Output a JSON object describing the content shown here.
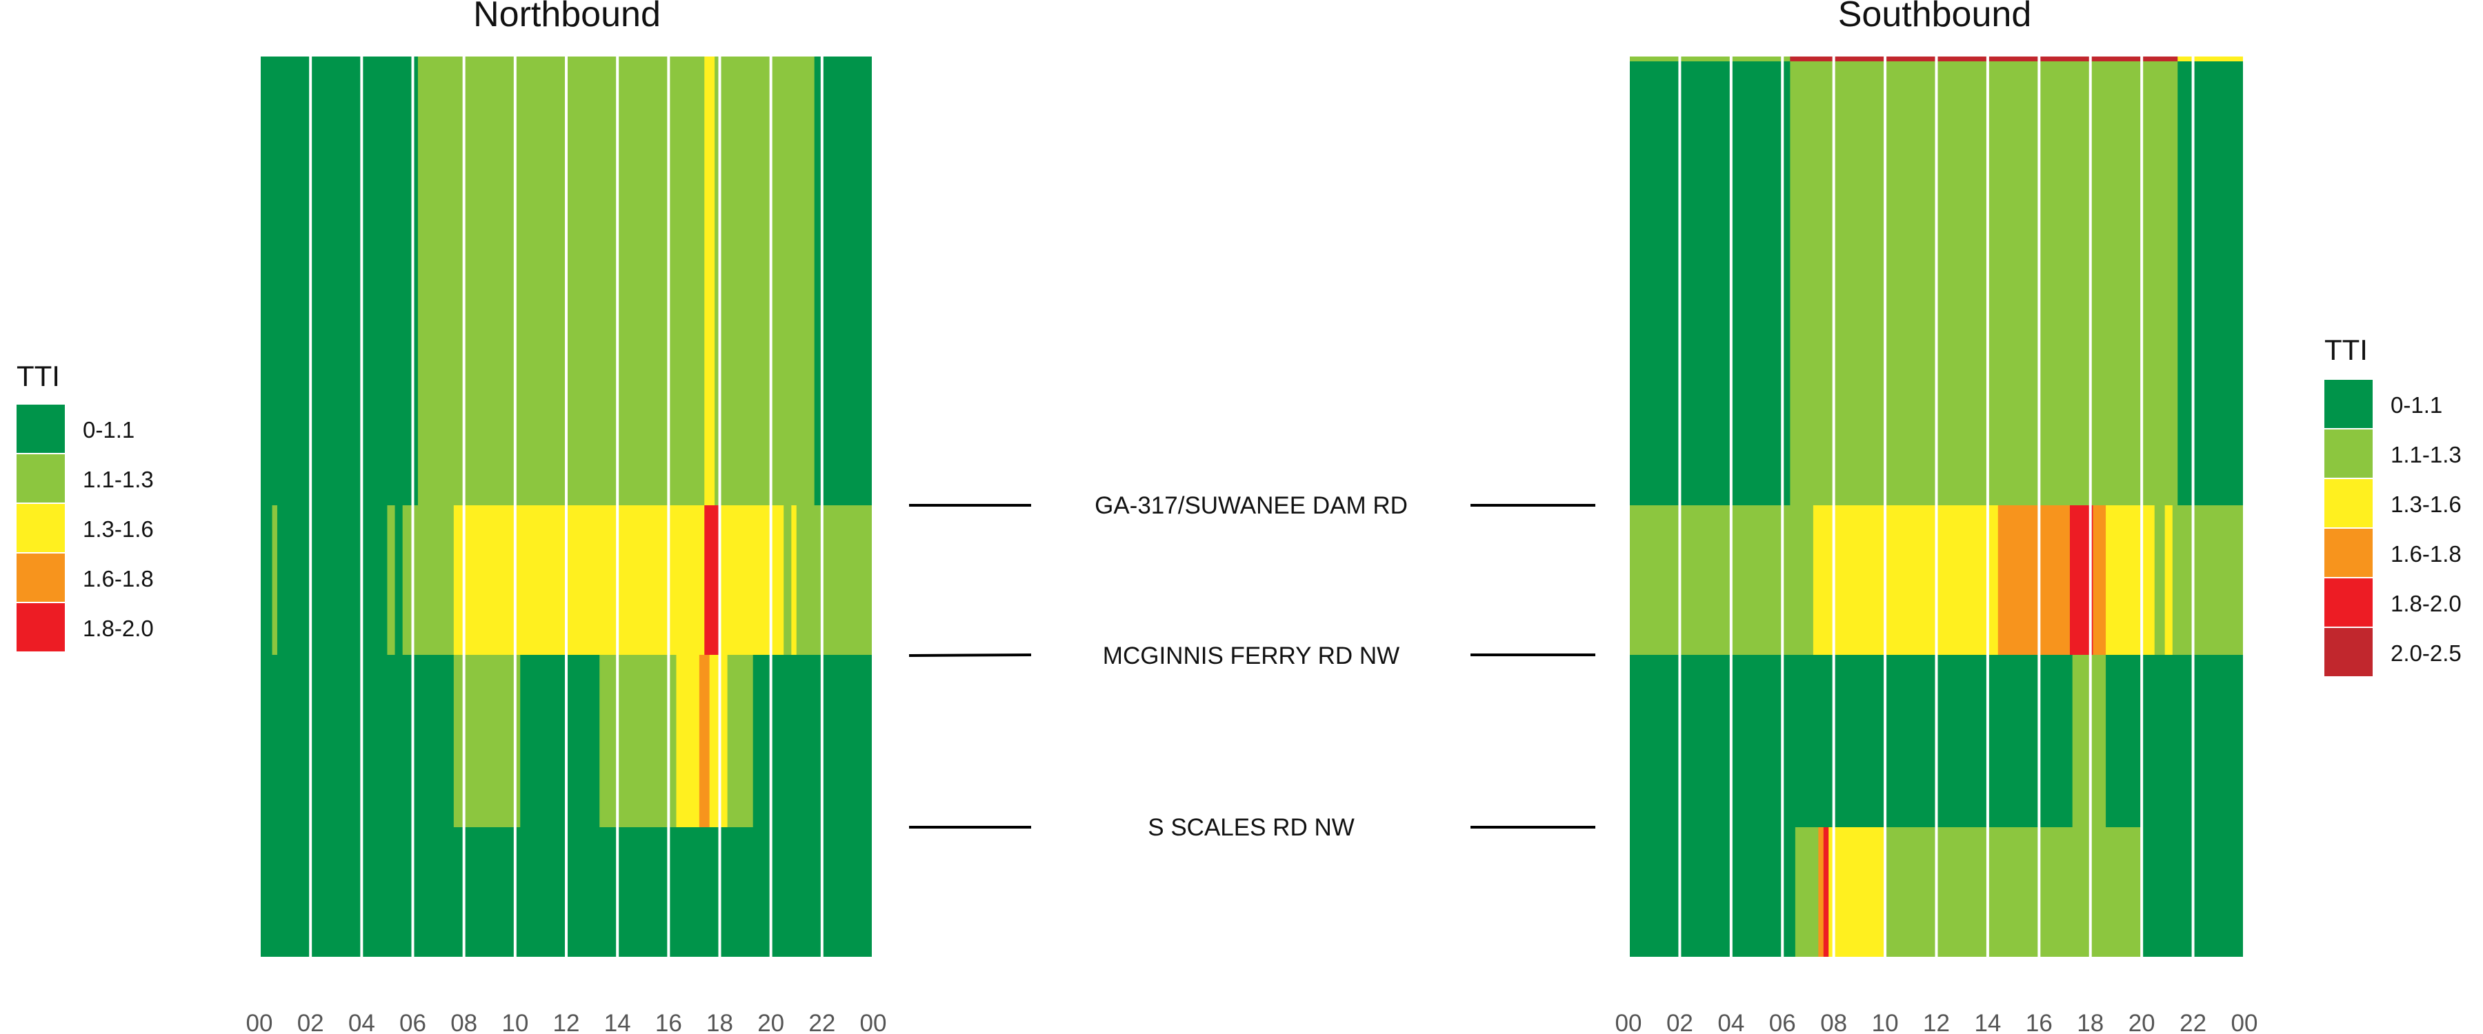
{
  "chart_data": {
    "type": "heatmap",
    "metric": "TTI",
    "x_tick_labels": [
      "00",
      "02",
      "04",
      "06",
      "08",
      "10",
      "12",
      "14",
      "16",
      "18",
      "20",
      "22",
      "00"
    ],
    "legend_left": {
      "title": "TTI",
      "entries": [
        {
          "label": "0-1.1",
          "color": "#00944a"
        },
        {
          "label": "1.1-1.3",
          "color": "#8cc63f"
        },
        {
          "label": "1.3-1.6",
          "color": "#fff01f"
        },
        {
          "label": "1.6-1.8",
          "color": "#f7941d"
        },
        {
          "label": "1.8-2.0",
          "color": "#ed1c24"
        }
      ]
    },
    "legend_right": {
      "title": "TTI",
      "entries": [
        {
          "label": "0-1.1",
          "color": "#00944a"
        },
        {
          "label": "1.1-1.3",
          "color": "#8cc63f"
        },
        {
          "label": "1.3-1.6",
          "color": "#fff01f"
        },
        {
          "label": "1.6-1.8",
          "color": "#f7941d"
        },
        {
          "label": "1.8-2.0",
          "color": "#ed1c24"
        },
        {
          "label": "2.0-2.5",
          "color": "#c1272d"
        }
      ]
    },
    "segment_labels": [
      "GA-317/SUWANEE DAM RD",
      "MCGINNIS FERRY RD NW",
      "S SCALES RD NW"
    ],
    "panels": [
      {
        "title": "Northbound",
        "rows": [
          {
            "segment": "North of GA-317/SUWANEE DAM RD",
            "blocks": [
              {
                "start": 0,
                "end": 6.2,
                "tti": "0-1.1"
              },
              {
                "start": 6.2,
                "end": 17.4,
                "tti": "1.1-1.3"
              },
              {
                "start": 17.4,
                "end": 17.8,
                "tti": "1.3-1.6"
              },
              {
                "start": 17.8,
                "end": 21.7,
                "tti": "1.1-1.3"
              },
              {
                "start": 21.7,
                "end": 24,
                "tti": "0-1.1"
              }
            ]
          },
          {
            "segment": "GA-317/SUWANEE DAM RD to MCGINNIS FERRY RD NW",
            "blocks": [
              {
                "start": 0,
                "end": 0.5,
                "tti": "0-1.1"
              },
              {
                "start": 0.5,
                "end": 0.7,
                "tti": "1.1-1.3"
              },
              {
                "start": 0.7,
                "end": 5.0,
                "tti": "0-1.1"
              },
              {
                "start": 5.0,
                "end": 5.3,
                "tti": "1.1-1.3"
              },
              {
                "start": 5.3,
                "end": 5.6,
                "tti": "0-1.1"
              },
              {
                "start": 5.6,
                "end": 7.6,
                "tti": "1.1-1.3"
              },
              {
                "start": 7.6,
                "end": 17.4,
                "tti": "1.3-1.6"
              },
              {
                "start": 17.4,
                "end": 18.0,
                "tti": "1.8-2.0"
              },
              {
                "start": 18.0,
                "end": 20.5,
                "tti": "1.3-1.6"
              },
              {
                "start": 20.5,
                "end": 20.8,
                "tti": "1.1-1.3"
              },
              {
                "start": 20.8,
                "end": 21.0,
                "tti": "1.3-1.6"
              },
              {
                "start": 21.0,
                "end": 24,
                "tti": "1.1-1.3"
              }
            ]
          },
          {
            "segment": "MCGINNIS FERRY RD NW to S SCALES RD NW",
            "blocks": [
              {
                "start": 0,
                "end": 7.6,
                "tti": "0-1.1"
              },
              {
                "start": 7.6,
                "end": 10.2,
                "tti": "1.1-1.3"
              },
              {
                "start": 10.2,
                "end": 13.3,
                "tti": "0-1.1"
              },
              {
                "start": 13.3,
                "end": 16.3,
                "tti": "1.1-1.3"
              },
              {
                "start": 16.3,
                "end": 17.2,
                "tti": "1.3-1.6"
              },
              {
                "start": 17.2,
                "end": 17.6,
                "tti": "1.6-1.8"
              },
              {
                "start": 17.6,
                "end": 18.3,
                "tti": "1.3-1.6"
              },
              {
                "start": 18.3,
                "end": 19.3,
                "tti": "1.1-1.3"
              },
              {
                "start": 19.3,
                "end": 24,
                "tti": "0-1.1"
              }
            ]
          },
          {
            "segment": "South of S SCALES RD NW",
            "blocks": [
              {
                "start": 0,
                "end": 24,
                "tti": "0-1.1"
              }
            ]
          }
        ]
      },
      {
        "title": "Southbound",
        "rows": [
          {
            "segment": "North of GA-317/SUWANEE DAM RD",
            "blocks": [
              {
                "start": 0,
                "end": 6.3,
                "tti": "0-1.1"
              },
              {
                "start": 6.3,
                "end": 21.4,
                "tti": "1.1-1.3"
              },
              {
                "start": 21.4,
                "end": 24,
                "tti": "0-1.1"
              }
            ]
          },
          {
            "segment": "GA-317/SUWANEE DAM RD to MCGINNIS FERRY RD NW",
            "blocks": [
              {
                "start": 0,
                "end": 7.2,
                "tti": "1.1-1.3"
              },
              {
                "start": 7.2,
                "end": 14.4,
                "tti": "1.3-1.6"
              },
              {
                "start": 14.4,
                "end": 17.2,
                "tti": "1.6-1.8"
              },
              {
                "start": 17.2,
                "end": 18.1,
                "tti": "1.8-2.0"
              },
              {
                "start": 18.1,
                "end": 18.6,
                "tti": "1.6-1.8"
              },
              {
                "start": 18.6,
                "end": 20.5,
                "tti": "1.3-1.6"
              },
              {
                "start": 20.5,
                "end": 20.9,
                "tti": "1.1-1.3"
              },
              {
                "start": 20.9,
                "end": 21.2,
                "tti": "1.3-1.6"
              },
              {
                "start": 21.2,
                "end": 24,
                "tti": "1.1-1.3"
              }
            ]
          },
          {
            "segment": "MCGINNIS FERRY RD NW to S SCALES RD NW",
            "blocks": [
              {
                "start": 0,
                "end": 17.3,
                "tti": "0-1.1"
              },
              {
                "start": 17.3,
                "end": 18.6,
                "tti": "1.1-1.3"
              },
              {
                "start": 18.6,
                "end": 24,
                "tti": "0-1.1"
              }
            ]
          },
          {
            "segment": "South of S SCALES RD NW",
            "blocks": [
              {
                "start": 0,
                "end": 6.5,
                "tti": "0-1.1"
              },
              {
                "start": 6.5,
                "end": 7.4,
                "tti": "1.1-1.3"
              },
              {
                "start": 7.4,
                "end": 7.6,
                "tti": "1.6-1.8"
              },
              {
                "start": 7.6,
                "end": 7.8,
                "tti": "1.8-2.0"
              },
              {
                "start": 7.8,
                "end": 10.0,
                "tti": "1.3-1.6"
              },
              {
                "start": 10.0,
                "end": 20.0,
                "tti": "1.1-1.3"
              },
              {
                "start": 20.0,
                "end": 24,
                "tti": "0-1.1"
              }
            ]
          }
        ],
        "top_edge_strip": [
          {
            "start": 0,
            "end": 6.3,
            "tti": "1.1-1.3"
          },
          {
            "start": 6.3,
            "end": 21.4,
            "tti": "2.0-2.5"
          },
          {
            "start": 21.4,
            "end": 24,
            "tti": "1.3-1.6"
          }
        ]
      }
    ]
  }
}
